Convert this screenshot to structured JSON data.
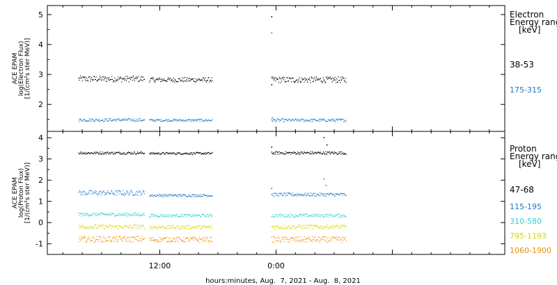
{
  "chart_data": [
    {
      "type": "scatter",
      "panel": "electron",
      "ylabel_lines": [
        "ACE EPAM",
        "log(Electron Flux)",
        "[1/(cm²s ster MeV)]"
      ],
      "ylim": [
        1.1,
        5.3
      ],
      "yticks": [
        2,
        3,
        4,
        5
      ],
      "legend_title_lines": [
        "Electron",
        "Energy ranges",
        "[keV]"
      ],
      "series": [
        {
          "name": "38-53",
          "color": "#000000",
          "segments": [
            [
              -10.2,
              -6.8,
              2.85,
              0.1
            ],
            [
              -6.55,
              -3.3,
              2.82,
              0.08
            ],
            [
              -0.25,
              3.6,
              2.82,
              0.1
            ]
          ]
        },
        {
          "name": "175-315",
          "color": "#1e78c8",
          "segments": [
            [
              -10.2,
              -6.8,
              1.48,
              0.05
            ],
            [
              -6.55,
              -3.3,
              1.47,
              0.04
            ],
            [
              -0.25,
              3.6,
              1.47,
              0.05
            ]
          ]
        }
      ],
      "spikes": [
        {
          "series": "38-53",
          "x": -0.25,
          "y": 4.92
        },
        {
          "series": "175-315",
          "x": -0.25,
          "y": 4.38
        },
        {
          "series": "38-53",
          "x": -0.25,
          "y": 2.65
        },
        {
          "series": "175-315",
          "x": -0.22,
          "y": 1.55
        }
      ]
    },
    {
      "type": "scatter",
      "panel": "proton",
      "ylabel_lines": [
        "ACE EPAM",
        "log(Proton Flux)",
        "[1/(cm²s ster MeV)]"
      ],
      "ylim": [
        -1.5,
        4.3
      ],
      "yticks": [
        -1,
        0,
        1,
        2,
        3,
        4
      ],
      "legend_title_lines": [
        "Proton",
        "Energy ranges",
        "[keV]"
      ],
      "series": [
        {
          "name": "47-68",
          "color": "#000000",
          "segments": [
            [
              -10.2,
              -6.8,
              3.28,
              0.06
            ],
            [
              -6.55,
              -3.3,
              3.26,
              0.05
            ],
            [
              -0.25,
              3.6,
              3.28,
              0.07
            ]
          ]
        },
        {
          "name": "115-195",
          "color": "#1e78c8",
          "segments": [
            [
              -10.2,
              -6.8,
              1.4,
              0.12
            ],
            [
              -6.55,
              -3.3,
              1.28,
              0.06
            ],
            [
              -0.25,
              3.6,
              1.32,
              0.08
            ]
          ]
        },
        {
          "name": "310-580",
          "color": "#30d0d0",
          "segments": [
            [
              -10.2,
              -6.8,
              0.38,
              0.08
            ],
            [
              -6.55,
              -3.3,
              0.33,
              0.07
            ],
            [
              -0.25,
              3.6,
              0.33,
              0.08
            ]
          ]
        },
        {
          "name": "795-1193",
          "color": "#d8d800",
          "segments": [
            [
              -10.2,
              -6.8,
              -0.2,
              0.1
            ],
            [
              -6.55,
              -3.3,
              -0.22,
              0.09
            ],
            [
              -0.25,
              3.6,
              -0.2,
              0.1
            ]
          ]
        },
        {
          "name": "1060-1900",
          "color": "#f08c00",
          "segments": [
            [
              -10.2,
              -6.8,
              -0.78,
              0.14
            ],
            [
              -6.55,
              -3.3,
              -0.8,
              0.12
            ],
            [
              -0.25,
              3.6,
              -0.8,
              0.14
            ]
          ]
        }
      ],
      "spikes": [
        {
          "series": "47-68",
          "x": 2.45,
          "y": 4.0
        },
        {
          "series": "47-68",
          "x": 2.6,
          "y": 3.65
        },
        {
          "series": "47-68",
          "x": -0.25,
          "y": 3.55
        },
        {
          "series": "115-195",
          "x": 2.45,
          "y": 2.05
        },
        {
          "series": "115-195",
          "x": 2.55,
          "y": 1.75
        },
        {
          "series": "115-195",
          "x": -0.25,
          "y": 1.6
        }
      ]
    }
  ],
  "x_axis": {
    "range_hours": [
      -11.8,
      11.8
    ],
    "tick_labels": [
      {
        "hour": -6,
        "label": "12:00"
      },
      {
        "hour": 0,
        "label": "0:00"
      }
    ],
    "title": "hours:minutes, Aug.  7, 2021 - Aug.  8, 2021"
  },
  "colors": {
    "axis": "#000000",
    "background": "#ffffff"
  }
}
